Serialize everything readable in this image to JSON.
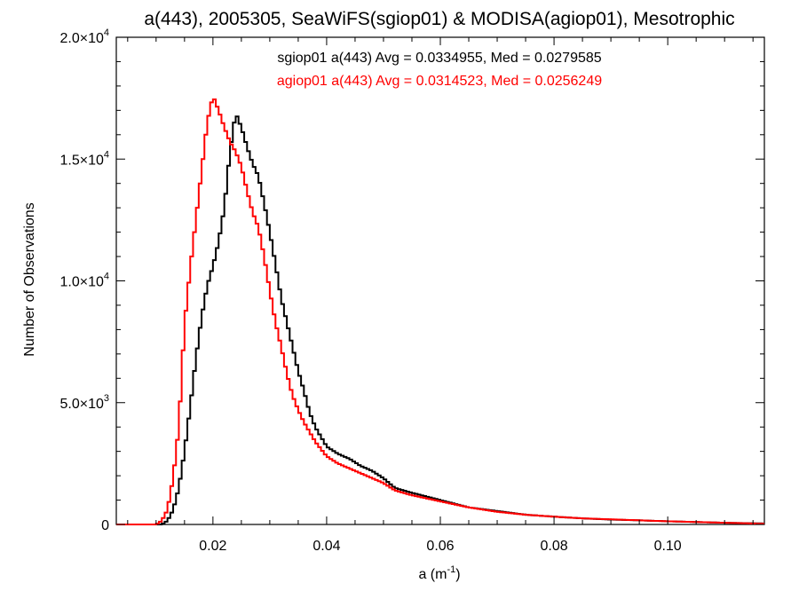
{
  "chart_data": {
    "type": "line",
    "title": "a(443), 2005305, SeaWiFS(sgiop01) & MODISA(agiop01), Mesotrophic",
    "xlabel": "a (m",
    "xlabel_sup": "-1",
    "xlabel_close": ")",
    "ylabel": "Number of Observations",
    "xlim": [
      0.003,
      0.117
    ],
    "ylim": [
      0,
      20000
    ],
    "x_ticks": [
      {
        "value": 0.02,
        "label": "0.02"
      },
      {
        "value": 0.04,
        "label": "0.04"
      },
      {
        "value": 0.06,
        "label": "0.06"
      },
      {
        "value": 0.08,
        "label": "0.08"
      },
      {
        "value": 0.1,
        "label": "0.10"
      }
    ],
    "y_ticks": [
      {
        "value": 0,
        "mant": "0",
        "exp": ""
      },
      {
        "value": 5000,
        "mant": "5.0×10",
        "exp": "3"
      },
      {
        "value": 10000,
        "mant": "1.0×10",
        "exp": "4"
      },
      {
        "value": 15000,
        "mant": "1.5×10",
        "exp": "4"
      },
      {
        "value": 20000,
        "mant": "2.0×10",
        "exp": "4"
      }
    ],
    "stats": [
      {
        "text": "sgiop01 a(443) Avg = 0.0334955, Med = 0.0279585",
        "color": "#000000"
      },
      {
        "text": "agiop01 a(443) Avg = 0.0314523, Med = 0.0256249",
        "color": "#ff0000"
      }
    ],
    "series": [
      {
        "color": "#000000",
        "points": [
          [
            0.003,
            0
          ],
          [
            0.011,
            0
          ],
          [
            0.012,
            150
          ],
          [
            0.013,
            600
          ],
          [
            0.014,
            1500
          ],
          [
            0.015,
            3000
          ],
          [
            0.016,
            4800
          ],
          [
            0.017,
            6800
          ],
          [
            0.018,
            8500
          ],
          [
            0.019,
            9800
          ],
          [
            0.02,
            10600
          ],
          [
            0.021,
            11600
          ],
          [
            0.022,
            13000
          ],
          [
            0.023,
            15300
          ],
          [
            0.024,
            16900
          ],
          [
            0.025,
            16300
          ],
          [
            0.026,
            15500
          ],
          [
            0.027,
            14800
          ],
          [
            0.028,
            14300
          ],
          [
            0.029,
            13200
          ],
          [
            0.03,
            12000
          ],
          [
            0.031,
            10700
          ],
          [
            0.032,
            9300
          ],
          [
            0.033,
            8300
          ],
          [
            0.034,
            7300
          ],
          [
            0.035,
            6300
          ],
          [
            0.036,
            5500
          ],
          [
            0.037,
            4600
          ],
          [
            0.038,
            4000
          ],
          [
            0.04,
            3200
          ],
          [
            0.042,
            2900
          ],
          [
            0.044,
            2700
          ],
          [
            0.046,
            2400
          ],
          [
            0.048,
            2200
          ],
          [
            0.05,
            1900
          ],
          [
            0.052,
            1500
          ],
          [
            0.055,
            1300
          ],
          [
            0.06,
            1000
          ],
          [
            0.065,
            700
          ],
          [
            0.07,
            550
          ],
          [
            0.075,
            400
          ],
          [
            0.08,
            320
          ],
          [
            0.085,
            250
          ],
          [
            0.09,
            200
          ],
          [
            0.095,
            170
          ],
          [
            0.1,
            130
          ],
          [
            0.105,
            100
          ],
          [
            0.11,
            70
          ],
          [
            0.117,
            40
          ]
        ]
      },
      {
        "color": "#ff0000",
        "points": [
          [
            0.003,
            0
          ],
          [
            0.01,
            0
          ],
          [
            0.011,
            150
          ],
          [
            0.012,
            600
          ],
          [
            0.013,
            1900
          ],
          [
            0.014,
            4000
          ],
          [
            0.015,
            8200
          ],
          [
            0.016,
            10500
          ],
          [
            0.017,
            12500
          ],
          [
            0.018,
            14500
          ],
          [
            0.019,
            16500
          ],
          [
            0.02,
            17600
          ],
          [
            0.021,
            17000
          ],
          [
            0.022,
            16300
          ],
          [
            0.023,
            15700
          ],
          [
            0.024,
            15300
          ],
          [
            0.025,
            14700
          ],
          [
            0.026,
            13700
          ],
          [
            0.027,
            12800
          ],
          [
            0.028,
            12200
          ],
          [
            0.029,
            11000
          ],
          [
            0.03,
            9600
          ],
          [
            0.031,
            8300
          ],
          [
            0.032,
            7300
          ],
          [
            0.033,
            6200
          ],
          [
            0.034,
            5300
          ],
          [
            0.035,
            4700
          ],
          [
            0.036,
            4200
          ],
          [
            0.037,
            3800
          ],
          [
            0.038,
            3400
          ],
          [
            0.04,
            2800
          ],
          [
            0.042,
            2500
          ],
          [
            0.044,
            2300
          ],
          [
            0.046,
            2100
          ],
          [
            0.048,
            1900
          ],
          [
            0.05,
            1700
          ],
          [
            0.052,
            1400
          ],
          [
            0.055,
            1200
          ],
          [
            0.06,
            950
          ],
          [
            0.065,
            700
          ],
          [
            0.07,
            520
          ],
          [
            0.075,
            400
          ],
          [
            0.08,
            320
          ],
          [
            0.085,
            250
          ],
          [
            0.09,
            210
          ],
          [
            0.095,
            170
          ],
          [
            0.1,
            130
          ],
          [
            0.105,
            100
          ],
          [
            0.11,
            70
          ],
          [
            0.117,
            30
          ]
        ]
      }
    ]
  }
}
